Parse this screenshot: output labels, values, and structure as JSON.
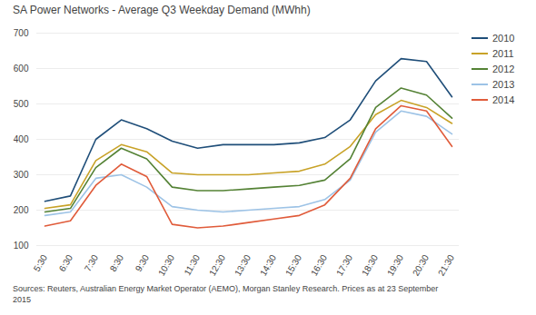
{
  "chart_data": {
    "type": "line",
    "title": "SA Power Networks - Average  Q3 Weekday Demand  (MWhh)",
    "annotations": [
      "Sources: Reuters, Australian Energy Market Operator (AEMO), Morgan Stanley Research. Prices as at 23 September",
      "2015"
    ],
    "categories": [
      "5:30",
      "6:30",
      "7:30",
      "8:30",
      "9:30",
      "10:30",
      "11:30",
      "12:30",
      "13:30",
      "14:30",
      "15:30",
      "16:30",
      "17:30",
      "18:30",
      "19:30",
      "20:30",
      "21:30"
    ],
    "series": [
      {
        "name": "2010",
        "color": "#1f4e79",
        "values": [
          225,
          240,
          400,
          455,
          430,
          395,
          375,
          385,
          385,
          385,
          390,
          405,
          455,
          565,
          628,
          620,
          520
        ]
      },
      {
        "name": "2011",
        "color": "#c8a227",
        "values": [
          205,
          215,
          340,
          385,
          365,
          305,
          300,
          300,
          300,
          305,
          310,
          330,
          380,
          470,
          510,
          490,
          445
        ]
      },
      {
        "name": "2012",
        "color": "#548235",
        "values": [
          195,
          205,
          320,
          375,
          345,
          265,
          255,
          255,
          260,
          265,
          270,
          285,
          345,
          490,
          545,
          525,
          460
        ]
      },
      {
        "name": "2013",
        "color": "#9dc3e6",
        "values": [
          185,
          195,
          290,
          300,
          265,
          210,
          200,
          195,
          200,
          205,
          210,
          230,
          285,
          420,
          480,
          465,
          415
        ]
      },
      {
        "name": "2014",
        "color": "#e05b3a",
        "values": [
          155,
          170,
          270,
          330,
          295,
          160,
          150,
          155,
          165,
          175,
          185,
          215,
          290,
          430,
          495,
          480,
          380
        ]
      }
    ],
    "ylim": [
      100,
      700
    ],
    "yticks": [
      100,
      200,
      300,
      400,
      500,
      600,
      700
    ],
    "grid": true,
    "legend": "right"
  }
}
